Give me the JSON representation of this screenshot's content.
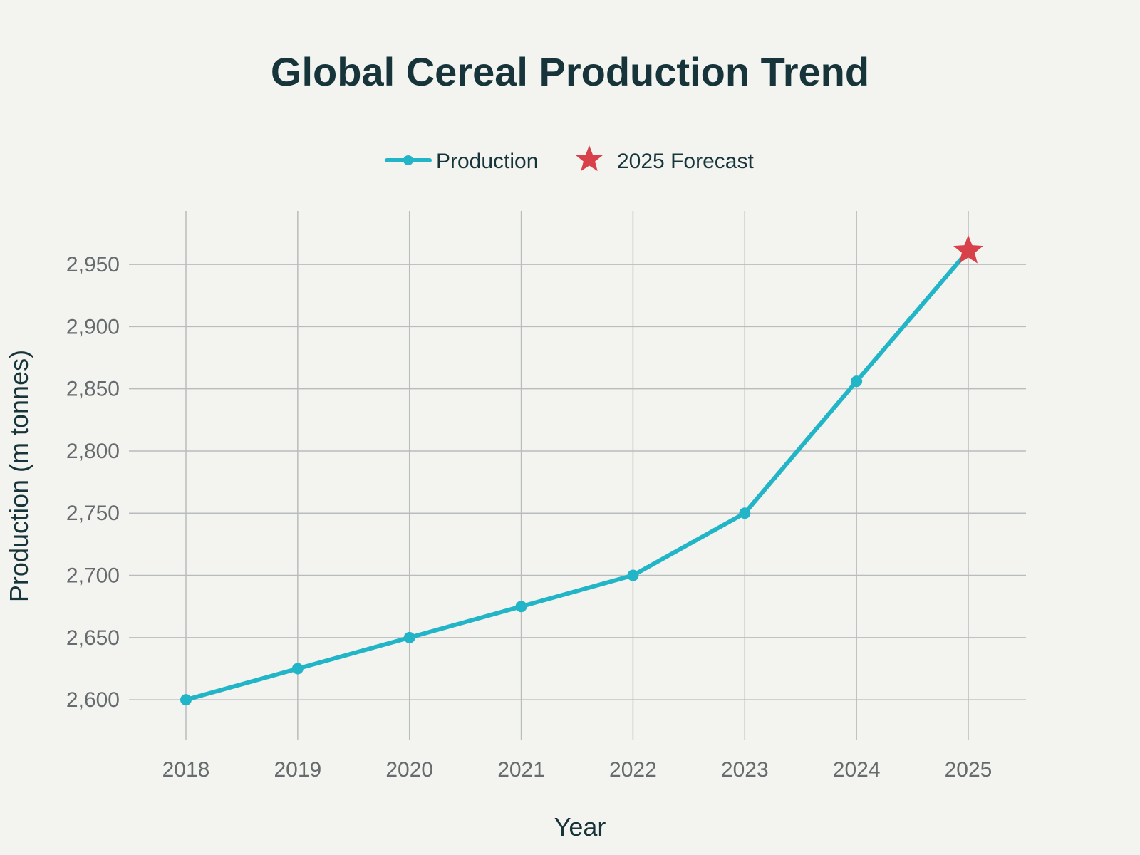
{
  "chart_data": {
    "type": "line",
    "title": "Global Cereal Production Trend",
    "xlabel": "Year",
    "ylabel": "Production (m tonnes)",
    "categories": [
      "2018",
      "2019",
      "2020",
      "2021",
      "2022",
      "2023",
      "2024",
      "2025"
    ],
    "series": [
      {
        "name": "Production",
        "values": [
          2600,
          2625,
          2650,
          2675,
          2700,
          2750,
          2856,
          2961
        ],
        "color": "#22b5c8",
        "marker": "circle"
      }
    ],
    "forecast": {
      "name": "2025 Forecast",
      "x": "2025",
      "value": 2961,
      "color": "#d8404a",
      "marker": "star"
    },
    "yticks": [
      2600,
      2650,
      2700,
      2750,
      2800,
      2850,
      2900,
      2950
    ],
    "ytick_labels": [
      "2,600",
      "2,650",
      "2,700",
      "2,750",
      "2,800",
      "2,850",
      "2,900",
      "2,950"
    ],
    "ylim": [
      2568,
      2993
    ],
    "grid": true,
    "legend_position": "top-center",
    "background_color": "#f3f4ef"
  }
}
